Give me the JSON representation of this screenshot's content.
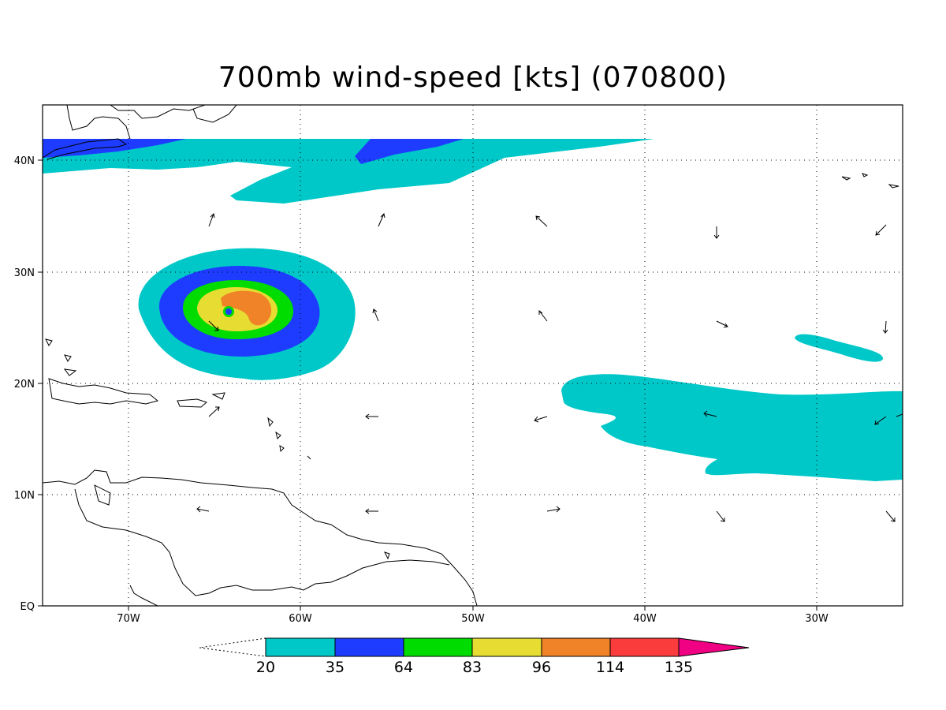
{
  "title": "700mb wind-speed [kts] (070800)",
  "map": {
    "lon_labels": [
      "70W",
      "60W",
      "50W",
      "40W",
      "30W"
    ],
    "lat_labels": [
      "40N",
      "30N",
      "20N",
      "10N",
      "EQ"
    ],
    "contour_fills": {
      "c20": "#00c8c8",
      "c35": "#1e3cff",
      "c64": "#00dc00",
      "c83": "#e6dc32",
      "c96": "#f08228",
      "c114": "#fa3c3c",
      "c135": "#f00082"
    }
  },
  "colorbar": {
    "labels": [
      "20",
      "35",
      "64",
      "83",
      "96",
      "114",
      "135"
    ],
    "colors": [
      "#00c8c8",
      "#1e3cff",
      "#00dc00",
      "#e6dc32",
      "#f08228",
      "#fa3c3c",
      "#f00082"
    ]
  }
}
